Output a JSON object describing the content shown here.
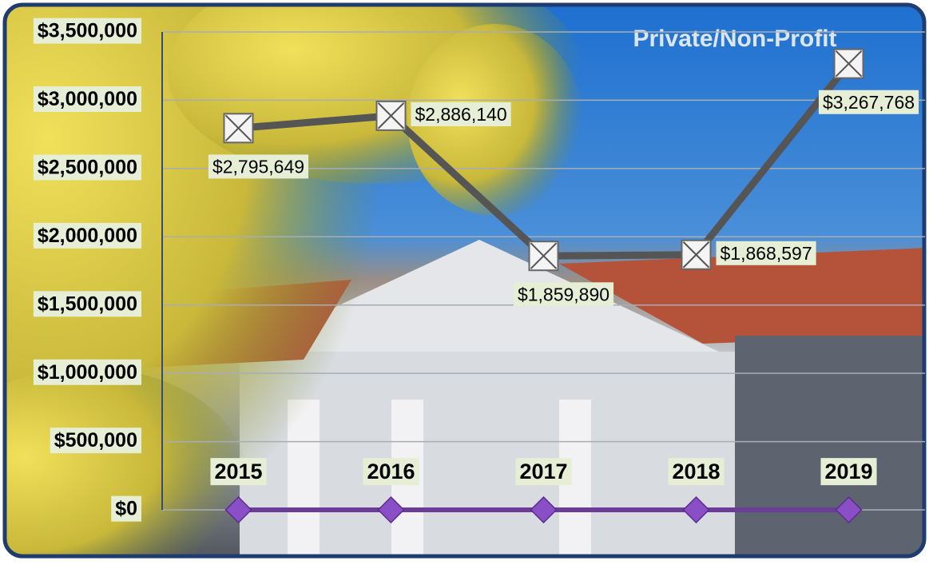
{
  "chart_data": {
    "type": "line",
    "title": "Private/Non-Profit",
    "categories": [
      "2015",
      "2016",
      "2017",
      "2018",
      "2019"
    ],
    "series": [
      {
        "color": "#555555",
        "values": [
          2795649,
          2886140,
          1859890,
          1868597,
          3267768
        ],
        "value_labels": [
          "$2,795,649",
          "$2,886,140",
          "$1,859,890",
          "$1,868,597",
          "$3,267,768"
        ]
      },
      {
        "color": "#6b3d99",
        "values": [
          0,
          0,
          0,
          0,
          0
        ]
      }
    ],
    "ylim": [
      0,
      3500000
    ],
    "yticks": [
      {
        "value": 0,
        "label": "$0"
      },
      {
        "value": 500000,
        "label": "$500,000"
      },
      {
        "value": 1000000,
        "label": "$1,000,000"
      },
      {
        "value": 1500000,
        "label": "$1,500,000"
      },
      {
        "value": 2000000,
        "label": "$2,000,000"
      },
      {
        "value": 2500000,
        "label": "$2,500,000"
      },
      {
        "value": 3000000,
        "label": "$3,000,000"
      },
      {
        "value": 3500000,
        "label": "$3,500,000"
      }
    ],
    "grid": true
  }
}
